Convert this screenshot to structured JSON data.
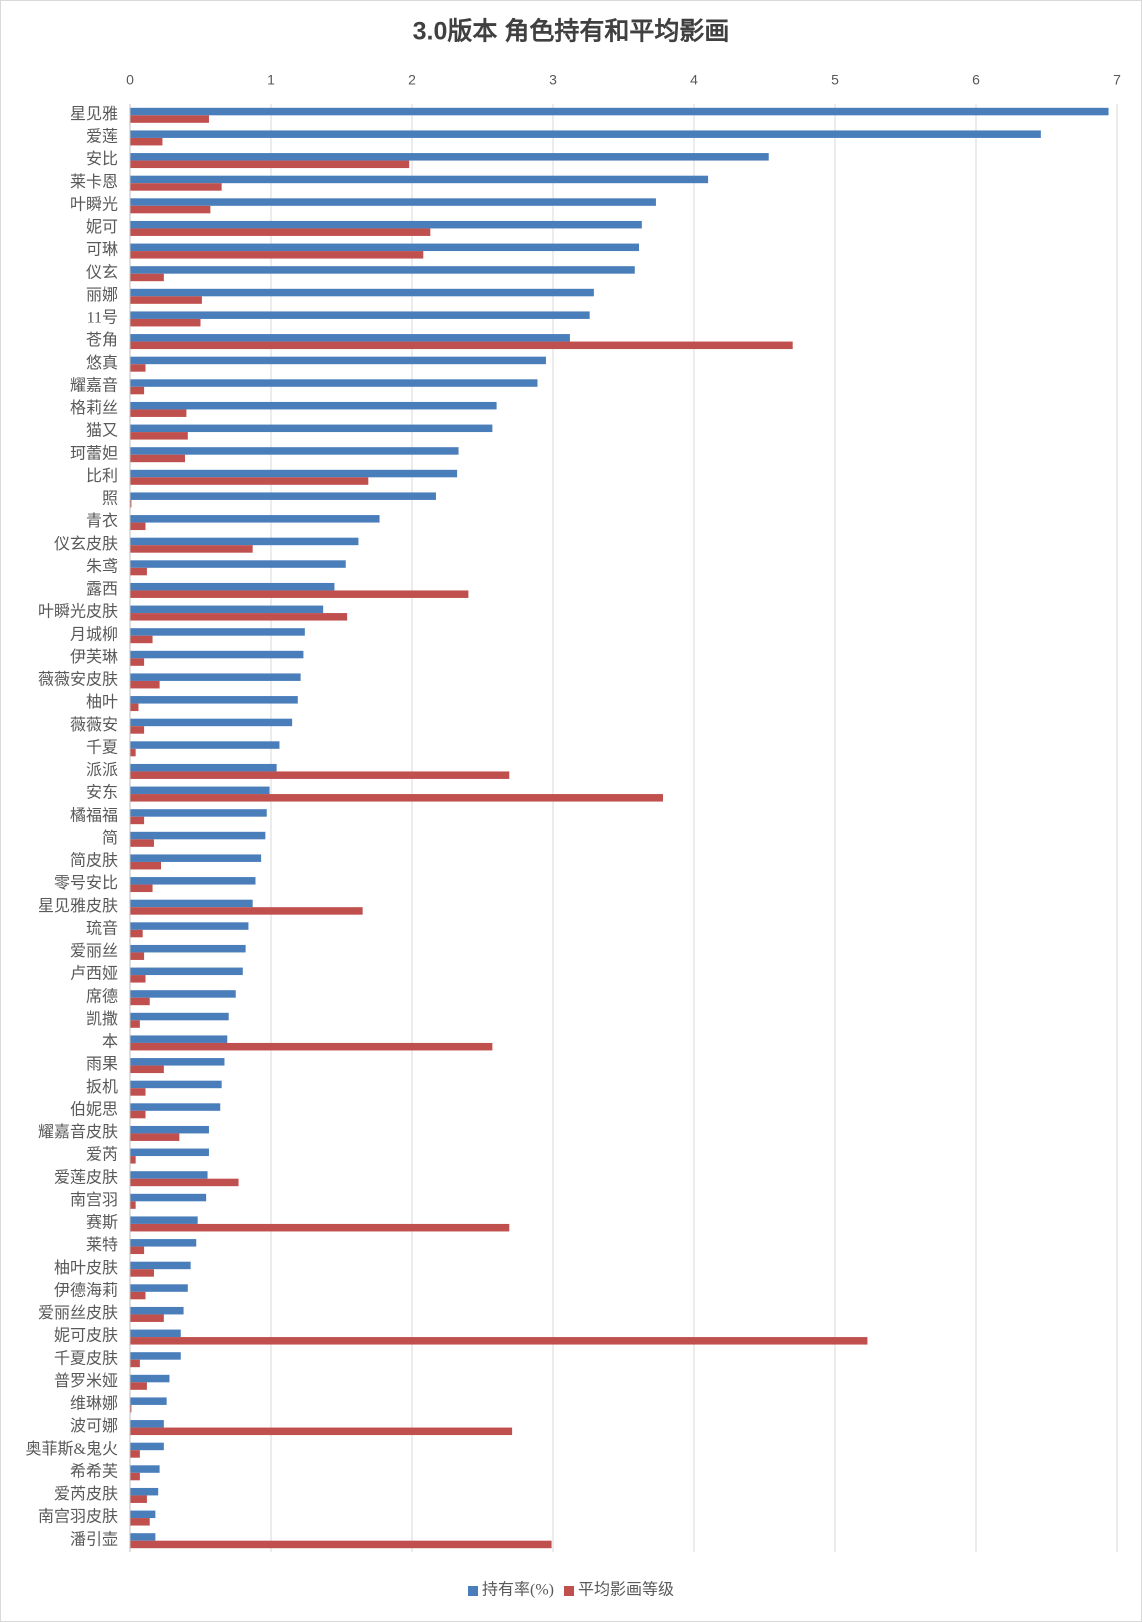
{
  "chart_data": {
    "type": "hbar",
    "title": "3.0版本 角色持有和平均影画",
    "categories": [
      "星见雅",
      "爱莲",
      "安比",
      "莱卡恩",
      "叶瞬光",
      "妮可",
      "可琳",
      "仪玄",
      "丽娜",
      "11号",
      "苍角",
      "悠真",
      "耀嘉音",
      "格莉丝",
      "猫又",
      "珂蕾妲",
      "比利",
      "照",
      "青衣",
      "仪玄皮肤",
      "朱鸢",
      "露西",
      "叶瞬光皮肤",
      "月城柳",
      "伊芙琳",
      "薇薇安皮肤",
      "柚叶",
      "薇薇安",
      "千夏",
      "派派",
      "安东",
      "橘福福",
      "简",
      "简皮肤",
      "零号安比",
      "星见雅皮肤",
      "琉音",
      "爱丽丝",
      "卢西娅",
      "席德",
      "凯撒",
      "本",
      "雨果",
      "扳机",
      "伯妮思",
      "耀嘉音皮肤",
      "爱芮",
      "爱莲皮肤",
      "南宫羽",
      "赛斯",
      "莱特",
      "柚叶皮肤",
      "伊德海莉",
      "爱丽丝皮肤",
      "妮可皮肤",
      "千夏皮肤",
      "普罗米娅",
      "维琳娜",
      "波可娜",
      "奥菲斯&鬼火",
      "希希芙",
      "爱芮皮肤",
      "南宫羽皮肤",
      "潘引壶"
    ],
    "series": [
      {
        "name": "持有率(%)",
        "color": "#4a7ebb",
        "values": [
          6.94,
          6.46,
          4.53,
          4.1,
          3.73,
          3.63,
          3.61,
          3.58,
          3.29,
          3.26,
          3.12,
          2.95,
          2.89,
          2.6,
          2.57,
          2.33,
          2.32,
          2.17,
          1.77,
          1.62,
          1.53,
          1.45,
          1.37,
          1.24,
          1.23,
          1.21,
          1.19,
          1.15,
          1.06,
          1.04,
          0.99,
          0.97,
          0.96,
          0.93,
          0.89,
          0.87,
          0.84,
          0.82,
          0.8,
          0.75,
          0.7,
          0.69,
          0.67,
          0.65,
          0.64,
          0.56,
          0.56,
          0.55,
          0.54,
          0.48,
          0.47,
          0.43,
          0.41,
          0.38,
          0.36,
          0.36,
          0.28,
          0.26,
          0.24,
          0.24,
          0.21,
          0.2,
          0.18,
          0.18
        ]
      },
      {
        "name": "平均影画等级",
        "color": "#c0504d",
        "values": [
          0.56,
          0.23,
          1.98,
          0.65,
          0.57,
          2.13,
          2.08,
          0.24,
          0.51,
          0.5,
          4.7,
          0.11,
          0.1,
          0.4,
          0.41,
          0.39,
          1.69,
          0.01,
          0.11,
          0.87,
          0.12,
          2.4,
          1.54,
          0.16,
          0.1,
          0.21,
          0.06,
          0.1,
          0.04,
          2.69,
          3.78,
          0.1,
          0.17,
          0.22,
          0.16,
          1.65,
          0.09,
          0.1,
          0.11,
          0.14,
          0.07,
          2.57,
          0.24,
          0.11,
          0.11,
          0.35,
          0.04,
          0.77,
          0.04,
          2.69,
          0.1,
          0.17,
          0.11,
          0.24,
          5.23,
          0.07,
          0.12,
          0.01,
          2.71,
          0.07,
          0.07,
          0.12,
          0.14,
          2.99
        ]
      }
    ],
    "xlim": [
      0,
      7
    ],
    "xticks": [
      0,
      1,
      2,
      3,
      4,
      5,
      6,
      7
    ],
    "grid": true
  }
}
